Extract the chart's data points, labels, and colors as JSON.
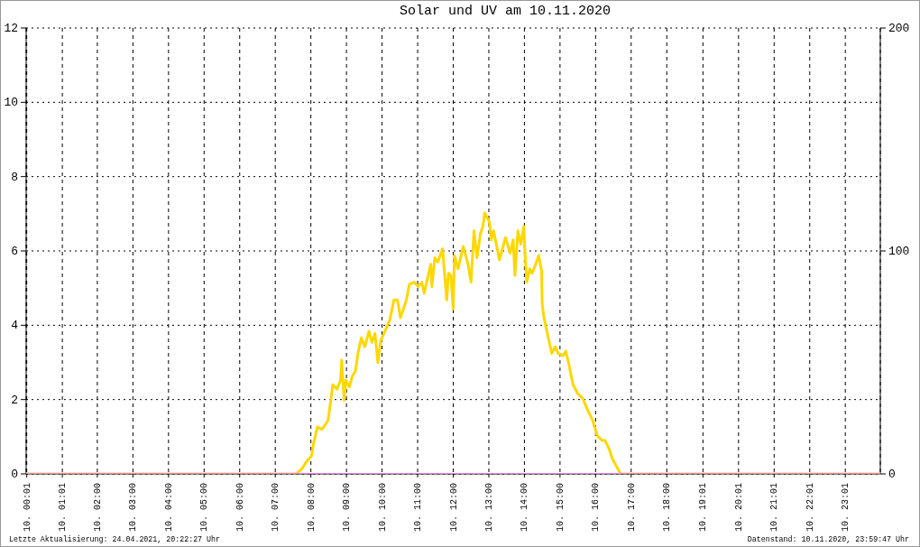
{
  "chart_data": {
    "type": "line",
    "title": "Solar und UV am 10.11.2020",
    "annotations": [
      "Letzte Aktualisierung: 24.04.2021, 20:22:27 Uhr",
      "Datenstand: 10.11.2020, 23:59:47 Uhr"
    ],
    "xlim": [
      "2020-11-10T00:00",
      "2020-11-11T00:00"
    ],
    "xticks": [
      {
        "value": "2020-11-10T00:01",
        "label": "10. 00:01"
      },
      {
        "value": "2020-11-10T01:01",
        "label": "10. 01:01"
      },
      {
        "value": "2020-11-10T02:00",
        "label": "10. 02:00"
      },
      {
        "value": "2020-11-10T03:00",
        "label": "10. 03:00"
      },
      {
        "value": "2020-11-10T04:00",
        "label": "10. 04:00"
      },
      {
        "value": "2020-11-10T05:00",
        "label": "10. 05:00"
      },
      {
        "value": "2020-11-10T06:00",
        "label": "10. 06:00"
      },
      {
        "value": "2020-11-10T07:00",
        "label": "10. 07:00"
      },
      {
        "value": "2020-11-10T08:00",
        "label": "10. 08:00"
      },
      {
        "value": "2020-11-10T09:00",
        "label": "10. 09:00"
      },
      {
        "value": "2020-11-10T10:00",
        "label": "10. 10:00"
      },
      {
        "value": "2020-11-10T11:00",
        "label": "10. 11:00"
      },
      {
        "value": "2020-11-10T12:00",
        "label": "10. 12:00"
      },
      {
        "value": "2020-11-10T13:00",
        "label": "10. 13:00"
      },
      {
        "value": "2020-11-10T14:00",
        "label": "10. 14:00"
      },
      {
        "value": "2020-11-10T15:00",
        "label": "10. 15:00"
      },
      {
        "value": "2020-11-10T16:00",
        "label": "10. 16:00"
      },
      {
        "value": "2020-11-10T17:00",
        "label": "10. 17:00"
      },
      {
        "value": "2020-11-10T18:00",
        "label": "10. 18:00"
      },
      {
        "value": "2020-11-10T19:01",
        "label": "10. 19:01"
      },
      {
        "value": "2020-11-10T20:01",
        "label": "10. 20:01"
      },
      {
        "value": "2020-11-10T21:01",
        "label": "10. 21:01"
      },
      {
        "value": "2020-11-10T22:01",
        "label": "10. 22:01"
      },
      {
        "value": "2020-11-10T23:01",
        "label": "10. 23:01"
      }
    ],
    "ylim": [
      0,
      12
    ],
    "yticks": [
      0,
      2,
      4,
      6,
      8,
      10,
      12
    ],
    "y2lim": [
      0,
      200
    ],
    "y2ticks": [
      0,
      100,
      200
    ],
    "grid": true,
    "series": [
      {
        "color": "#ffd700",
        "axis": "y2",
        "x": [
          "2020-11-10T00:01",
          "2020-11-10T07:35",
          "2020-11-10T07:44",
          "2020-11-10T07:54",
          "2020-11-10T08:01",
          "2020-11-10T08:04",
          "2020-11-10T08:11",
          "2020-11-10T08:19",
          "2020-11-10T08:29",
          "2020-11-10T08:32",
          "2020-11-10T08:37",
          "2020-11-10T08:44",
          "2020-11-10T08:50",
          "2020-11-10T08:52",
          "2020-11-10T08:56",
          "2020-11-10T08:59",
          "2020-11-10T09:05",
          "2020-11-10T09:10",
          "2020-11-10T09:15",
          "2020-11-10T09:20",
          "2020-11-10T09:25",
          "2020-11-10T09:31",
          "2020-11-10T09:38",
          "2020-11-10T09:43",
          "2020-11-10T09:48",
          "2020-11-10T09:53",
          "2020-11-10T09:58",
          "2020-11-10T10:05",
          "2020-11-10T10:13",
          "2020-11-10T10:20",
          "2020-11-10T10:26",
          "2020-11-10T10:31",
          "2020-11-10T10:36",
          "2020-11-10T10:41",
          "2020-11-10T10:46",
          "2020-11-10T10:54",
          "2020-11-10T11:01",
          "2020-11-10T11:07",
          "2020-11-10T11:11",
          "2020-11-10T11:17",
          "2020-11-10T11:22",
          "2020-11-10T11:24",
          "2020-11-10T11:29",
          "2020-11-10T11:34",
          "2020-11-10T11:42",
          "2020-11-10T11:49",
          "2020-11-10T11:52",
          "2020-11-10T11:56",
          "2020-11-10T12:00",
          "2020-11-10T12:02",
          "2020-11-10T12:08",
          "2020-11-10T12:17",
          "2020-11-10T12:25",
          "2020-11-10T12:30",
          "2020-11-10T12:35",
          "2020-11-10T12:40",
          "2020-11-10T12:46",
          "2020-11-10T12:50",
          "2020-11-10T12:53",
          "2020-11-10T13:01",
          "2020-11-10T13:04",
          "2020-11-10T13:08",
          "2020-11-10T13:18",
          "2020-11-10T13:28",
          "2020-11-10T13:36",
          "2020-11-10T13:41",
          "2020-11-10T13:44",
          "2020-11-10T13:49",
          "2020-11-10T13:54",
          "2020-11-10T13:59",
          "2020-11-10T14:01",
          "2020-11-10T14:04",
          "2020-11-10T14:09",
          "2020-11-10T14:13",
          "2020-11-10T14:19",
          "2020-11-10T14:24",
          "2020-11-10T14:29",
          "2020-11-10T14:30",
          "2020-11-10T14:33",
          "2020-11-10T14:37",
          "2020-11-10T14:42",
          "2020-11-10T14:46",
          "2020-11-10T14:52",
          "2020-11-10T14:57",
          "2020-11-10T15:05",
          "2020-11-10T15:10",
          "2020-11-10T15:15",
          "2020-11-10T15:22",
          "2020-11-10T15:30",
          "2020-11-10T15:38",
          "2020-11-10T15:46",
          "2020-11-10T15:55",
          "2020-11-10T16:03",
          "2020-11-10T16:11",
          "2020-11-10T16:16",
          "2020-11-10T16:23",
          "2020-11-10T16:28",
          "2020-11-10T16:36",
          "2020-11-10T16:42",
          "2020-11-10T23:59"
        ],
        "values": [
          0,
          0,
          2,
          6,
          8,
          13,
          21,
          20,
          24,
          30,
          40,
          38,
          42,
          51,
          33,
          42,
          39,
          44,
          46,
          55,
          61,
          57,
          64,
          59,
          63,
          50,
          60,
          64,
          69,
          78,
          78,
          70,
          74,
          78,
          85,
          86,
          84,
          86,
          81,
          88,
          94,
          84,
          97,
          95,
          101,
          78,
          90,
          89,
          74,
          98,
          92,
          102,
          94,
          86,
          109,
          97,
          108,
          111,
          117,
          113,
          105,
          109,
          96,
          106,
          99,
          105,
          89,
          109,
          103,
          111,
          99,
          86,
          92,
          90,
          94,
          98,
          91,
          76,
          70,
          65,
          59,
          54,
          57,
          54,
          53,
          55,
          49,
          40,
          36,
          34,
          29,
          24,
          17,
          15,
          15,
          11,
          7,
          3,
          0,
          0
        ]
      },
      {
        "color": "#ee82ee",
        "x": [
          "2020-11-10T00:01",
          "2020-11-10T23:59"
        ],
        "values": [
          0,
          0
        ]
      }
    ]
  }
}
